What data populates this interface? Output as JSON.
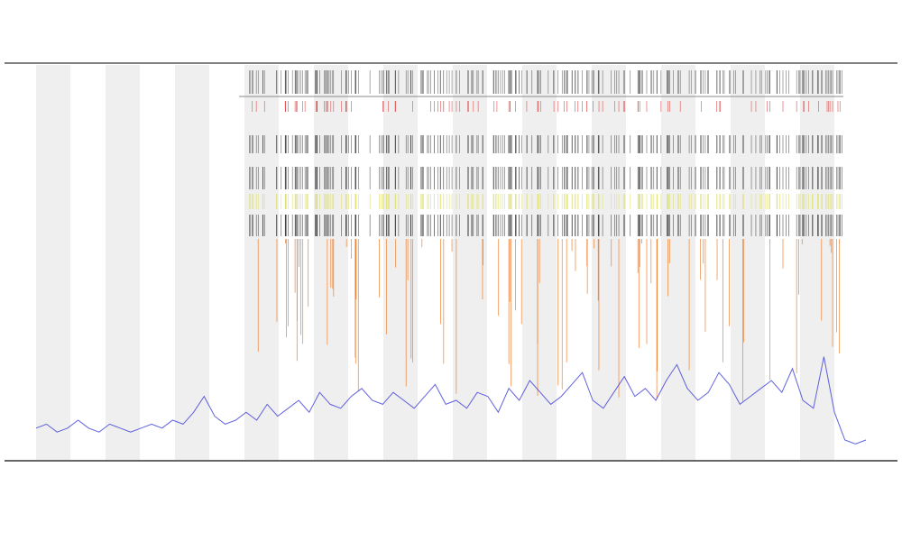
{
  "chart_data": {
    "type": "line",
    "series": [
      {
        "color": "#3a3ad8",
        "values": [
          8,
          9,
          7,
          8,
          10,
          8,
          7,
          9,
          8,
          7,
          8,
          9,
          8,
          10,
          9,
          12,
          16,
          11,
          9,
          10,
          12,
          10,
          14,
          11,
          13,
          15,
          12,
          17,
          14,
          13,
          16,
          18,
          15,
          14,
          17,
          15,
          13,
          16,
          19,
          14,
          15,
          13,
          17,
          16,
          12,
          18,
          15,
          20,
          17,
          14,
          16,
          19,
          22,
          15,
          13,
          17,
          21,
          16,
          18,
          15,
          20,
          24,
          18,
          15,
          17,
          22,
          19,
          14,
          16,
          18,
          20,
          17,
          23,
          15,
          13,
          26,
          12,
          5,
          4,
          5
        ]
      }
    ],
    "ylim": [
      0,
      100
    ]
  }
}
